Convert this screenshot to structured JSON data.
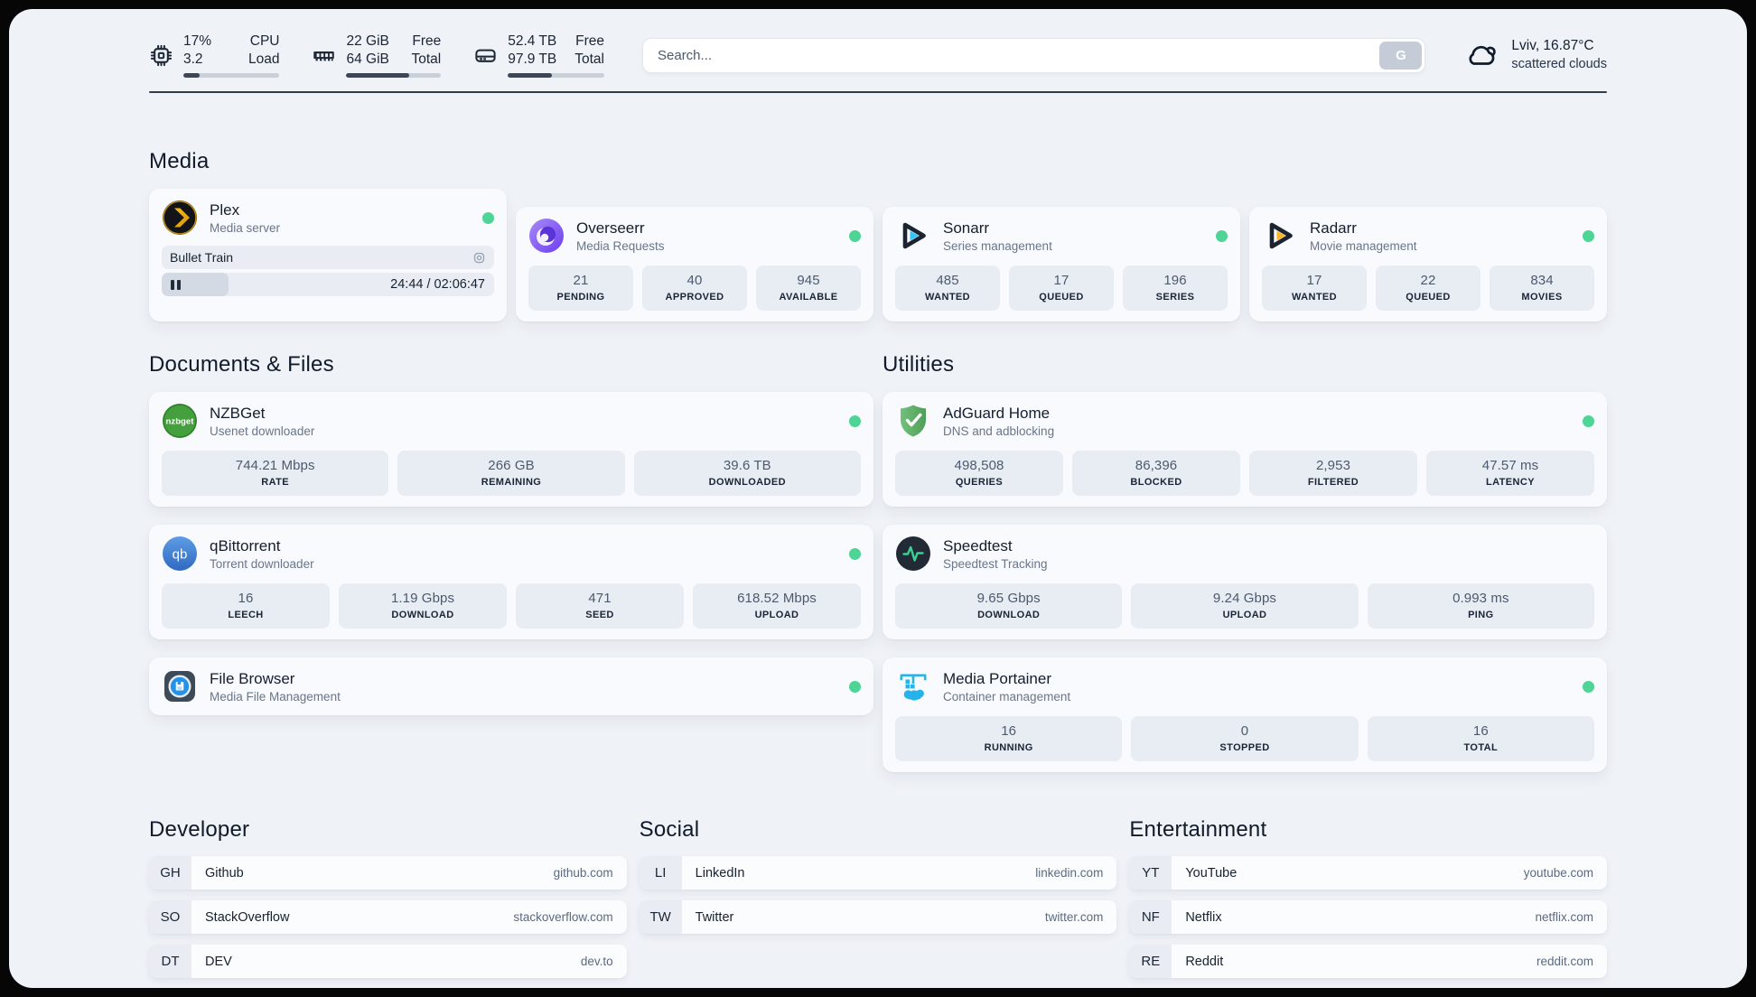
{
  "topbar": {
    "cpu": {
      "value_top": "17%",
      "value_bottom": "3.2",
      "label_top": "CPU",
      "label_bottom": "Load",
      "bar_percent": 17
    },
    "memory": {
      "value_top": "22 GiB",
      "value_bottom": "64 GiB",
      "label_top": "Free",
      "label_bottom": "Total",
      "bar_percent": 66
    },
    "disk": {
      "value_top": "52.4 TB",
      "value_bottom": "97.9 TB",
      "label_top": "Free",
      "label_bottom": "Total",
      "bar_percent": 46
    },
    "search": {
      "placeholder": "Search...",
      "button_label": "G"
    },
    "weather": {
      "location_temp": "Lviv, 16.87°C",
      "condition": "scattered clouds"
    }
  },
  "media": {
    "heading": "Media",
    "plex": {
      "title": "Plex",
      "subtitle": "Media server",
      "now_playing": "Bullet Train",
      "time_display": "24:44 / 02:06:47",
      "progress_percent": 20
    },
    "overseerr": {
      "title": "Overseerr",
      "subtitle": "Media Requests",
      "stats": [
        {
          "value": "21",
          "label": "PENDING"
        },
        {
          "value": "40",
          "label": "APPROVED"
        },
        {
          "value": "945",
          "label": "AVAILABLE"
        }
      ]
    },
    "sonarr": {
      "title": "Sonarr",
      "subtitle": "Series management",
      "stats": [
        {
          "value": "485",
          "label": "WANTED"
        },
        {
          "value": "17",
          "label": "QUEUED"
        },
        {
          "value": "196",
          "label": "SERIES"
        }
      ]
    },
    "radarr": {
      "title": "Radarr",
      "subtitle": "Movie management",
      "stats": [
        {
          "value": "17",
          "label": "WANTED"
        },
        {
          "value": "22",
          "label": "QUEUED"
        },
        {
          "value": "834",
          "label": "MOVIES"
        }
      ]
    }
  },
  "documents": {
    "heading": "Documents & Files",
    "nzbget": {
      "title": "NZBGet",
      "subtitle": "Usenet downloader",
      "stats": [
        {
          "value": "744.21 Mbps",
          "label": "RATE"
        },
        {
          "value": "266 GB",
          "label": "REMAINING"
        },
        {
          "value": "39.6 TB",
          "label": "DOWNLOADED"
        }
      ]
    },
    "qbittorrent": {
      "title": "qBittorrent",
      "subtitle": "Torrent downloader",
      "stats": [
        {
          "value": "16",
          "label": "LEECH"
        },
        {
          "value": "1.19 Gbps",
          "label": "DOWNLOAD"
        },
        {
          "value": "471",
          "label": "SEED"
        },
        {
          "value": "618.52 Mbps",
          "label": "UPLOAD"
        }
      ]
    },
    "filebrowser": {
      "title": "File Browser",
      "subtitle": "Media File Management"
    }
  },
  "utilities": {
    "heading": "Utilities",
    "adguard": {
      "title": "AdGuard Home",
      "subtitle": "DNS and adblocking",
      "stats": [
        {
          "value": "498,508",
          "label": "QUERIES"
        },
        {
          "value": "86,396",
          "label": "BLOCKED"
        },
        {
          "value": "2,953",
          "label": "FILTERED"
        },
        {
          "value": "47.57 ms",
          "label": "LATENCY"
        }
      ]
    },
    "speedtest": {
      "title": "Speedtest",
      "subtitle": "Speedtest Tracking",
      "stats": [
        {
          "value": "9.65 Gbps",
          "label": "DOWNLOAD"
        },
        {
          "value": "9.24 Gbps",
          "label": "UPLOAD"
        },
        {
          "value": "0.993 ms",
          "label": "PING"
        }
      ]
    },
    "portainer": {
      "title": "Media Portainer",
      "subtitle": "Container management",
      "stats": [
        {
          "value": "16",
          "label": "RUNNING"
        },
        {
          "value": "0",
          "label": "STOPPED"
        },
        {
          "value": "16",
          "label": "TOTAL"
        }
      ]
    }
  },
  "bookmarks": {
    "developer": {
      "heading": "Developer",
      "items": [
        {
          "abbr": "GH",
          "name": "Github",
          "url": "github.com"
        },
        {
          "abbr": "SO",
          "name": "StackOverflow",
          "url": "stackoverflow.com"
        },
        {
          "abbr": "DT",
          "name": "DEV",
          "url": "dev.to"
        }
      ]
    },
    "social": {
      "heading": "Social",
      "items": [
        {
          "abbr": "LI",
          "name": "LinkedIn",
          "url": "linkedin.com"
        },
        {
          "abbr": "TW",
          "name": "Twitter",
          "url": "twitter.com"
        }
      ]
    },
    "entertainment": {
      "heading": "Entertainment",
      "items": [
        {
          "abbr": "YT",
          "name": "YouTube",
          "url": "youtube.com"
        },
        {
          "abbr": "NF",
          "name": "Netflix",
          "url": "netflix.com"
        },
        {
          "abbr": "RE",
          "name": "Reddit",
          "url": "reddit.com"
        }
      ]
    }
  },
  "status_color": "#4ed494"
}
